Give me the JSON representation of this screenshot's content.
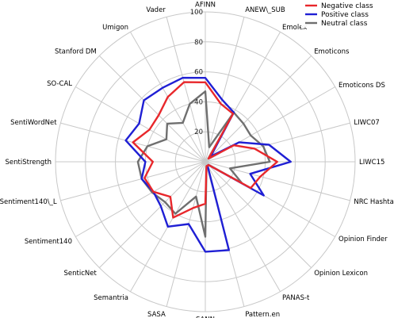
{
  "chart_data": {
    "type": "radar",
    "title": "",
    "categories": [
      "AFINN",
      "ANEW\\_SUB",
      "Emolex",
      "Emoticons",
      "Emoticons DS",
      "LIWC07",
      "LIWC15",
      "NRC Hashtag",
      "Opinion Finder",
      "Opinion Lexicon",
      "PANAS-t",
      "Pattern.en",
      "SANN",
      "SASA",
      "Semantria",
      "SenticNet",
      "Sentiment140",
      "Sentiment140\\_L",
      "SentiStrength",
      "SentiWordNet",
      "SO-CAL",
      "Stanford DM",
      "Umigon",
      "Vader"
    ],
    "rlim": [
      0,
      100
    ],
    "rticks": [
      20,
      40,
      60,
      80,
      100
    ],
    "legend_position": "top-right",
    "grid": true,
    "series": [
      {
        "name": "Negative class",
        "color": "#e8272b",
        "values": [
          53,
          40,
          37,
          3,
          22,
          34,
          48,
          38,
          35,
          3,
          3,
          3,
          28,
          32,
          43,
          33,
          40,
          42,
          35,
          50,
          43,
          44,
          50,
          55
        ]
      },
      {
        "name": "Positive class",
        "color": "#1f1fd4",
        "values": [
          56,
          43,
          38,
          5,
          26,
          44,
          57,
          31,
          45,
          3,
          3,
          61,
          60,
          43,
          50,
          42,
          40,
          44,
          40,
          55,
          51,
          58,
          57,
          58
        ]
      },
      {
        "name": "Neutral class",
        "color": "#6f6f6f",
        "values": [
          47,
          10,
          38,
          36,
          35,
          40,
          43,
          17,
          28,
          3,
          3,
          3,
          50,
          24,
          40,
          38,
          41,
          44,
          45,
          40,
          30,
          36,
          30,
          40
        ]
      }
    ]
  }
}
